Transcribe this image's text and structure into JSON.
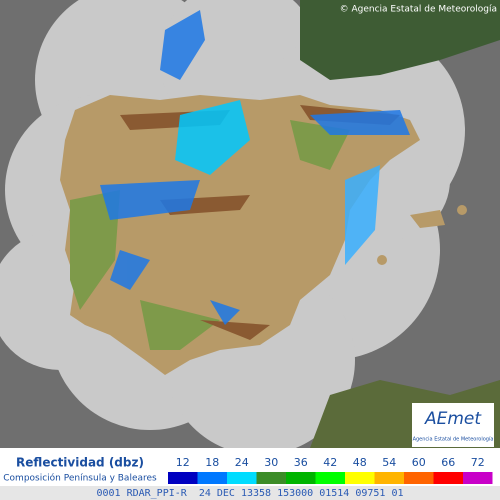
{
  "header": {
    "copyright": "© Agencia Estatal de Meteorología"
  },
  "logo": {
    "name": "AEmet",
    "subtitle": "Agencia Estatal de Meteorología"
  },
  "legend": {
    "title": "Reflectividad (dbz)",
    "subtitle": "Composición Península y Baleares",
    "levels": [
      {
        "value": "12",
        "color": "#0000c0"
      },
      {
        "value": "18",
        "color": "#0078ff"
      },
      {
        "value": "24",
        "color": "#00dcff"
      },
      {
        "value": "30",
        "color": "#3c8c28"
      },
      {
        "value": "36",
        "color": "#00b400"
      },
      {
        "value": "42",
        "color": "#00ff00"
      },
      {
        "value": "48",
        "color": "#ffff00"
      },
      {
        "value": "54",
        "color": "#ffb400"
      },
      {
        "value": "60",
        "color": "#ff6400"
      },
      {
        "value": "66",
        "color": "#ff0000"
      },
      {
        "value": "72",
        "color": "#c800c8"
      }
    ]
  },
  "footer": {
    "code": "0001 RDAR_PPI-R  24 DEC 13358 153000 01514 09751 01"
  }
}
